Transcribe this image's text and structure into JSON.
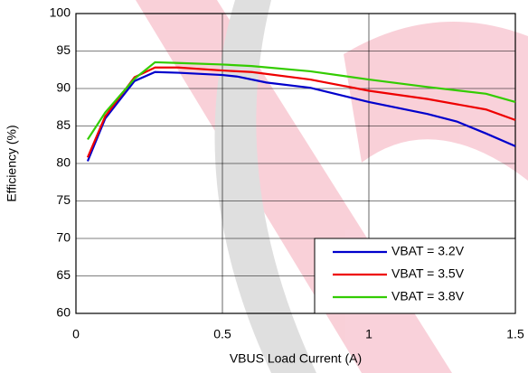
{
  "chart_data": {
    "type": "line",
    "xlabel": "VBUS Load Current (A)",
    "ylabel": "Efficiency (%)",
    "series": [
      {
        "name": "VBAT = 3.2V",
        "color": "#0000cc",
        "x": [
          0.04,
          0.1,
          0.2,
          0.27,
          0.35,
          0.5,
          0.55,
          0.65,
          0.8,
          1.0,
          1.2,
          1.3,
          1.4,
          1.5
        ],
        "values": [
          80.3,
          86,
          91,
          92.2,
          92.1,
          91.8,
          91.6,
          90.8,
          90.1,
          88.2,
          86.6,
          85.6,
          84,
          82.3
        ]
      },
      {
        "name": "VBAT = 3.5V",
        "color": "#ee0000",
        "x": [
          0.04,
          0.1,
          0.2,
          0.27,
          0.35,
          0.5,
          0.6,
          0.8,
          1.0,
          1.2,
          1.4,
          1.5
        ],
        "values": [
          80.8,
          86.3,
          91.5,
          92.8,
          92.8,
          92.4,
          92.2,
          91.2,
          89.7,
          88.6,
          87.2,
          85.8
        ]
      },
      {
        "name": "VBAT = 3.8V",
        "color": "#33cc00",
        "x": [
          0.04,
          0.1,
          0.2,
          0.27,
          0.35,
          0.5,
          0.6,
          0.8,
          1.0,
          1.2,
          1.4,
          1.5
        ],
        "values": [
          83.2,
          86.8,
          91.3,
          93.5,
          93.4,
          93.2,
          93.0,
          92.3,
          91.2,
          90.2,
          89.3,
          88.2
        ]
      }
    ],
    "xlim": [
      0,
      1.5
    ],
    "xticks": [
      0,
      0.5,
      1,
      1.5
    ],
    "ylim": [
      60,
      100
    ],
    "yticks": [
      60,
      65,
      70,
      75,
      80,
      85,
      90,
      95,
      100
    ],
    "grid": true,
    "legend": "lower right"
  }
}
